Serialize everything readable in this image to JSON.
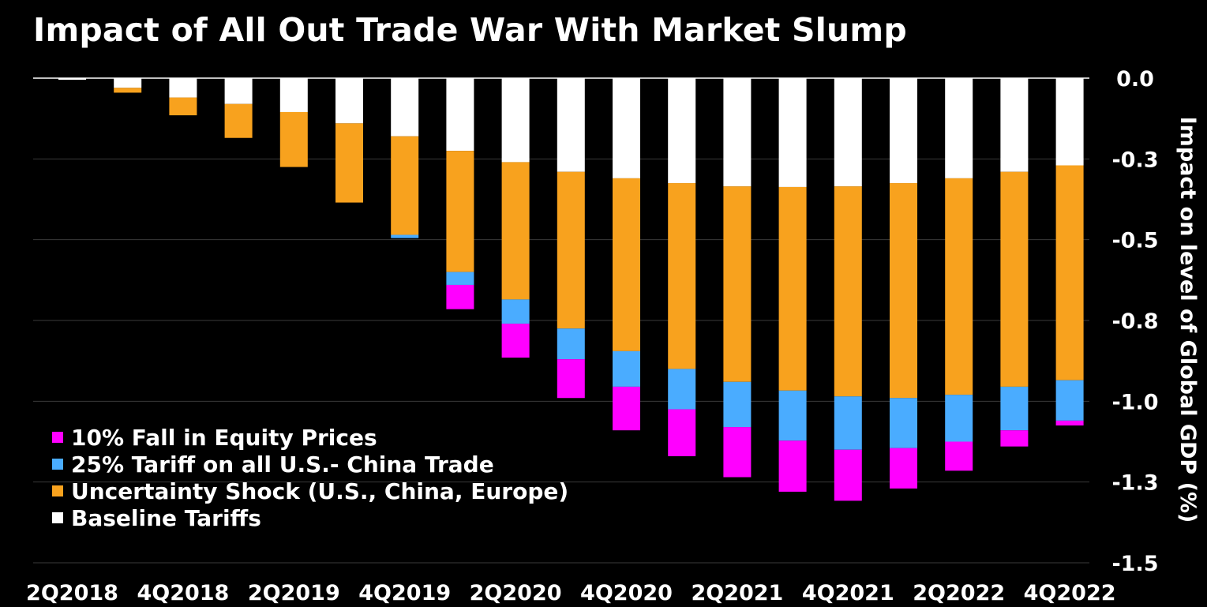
{
  "chart_data": {
    "type": "bar",
    "stacked": true,
    "title": "Impact of All Out Trade War With Market Slump",
    "ylabel": "Impact on level of Global GDP (%)",
    "ylim": [
      -1.5,
      0
    ],
    "ytick_values": [
      0,
      -0.25,
      -0.5,
      -0.75,
      -1.0,
      -1.25,
      -1.5
    ],
    "ytick_labels": [
      "0.0",
      "-0.3",
      "-0.5",
      "-0.8",
      "-1.0",
      "-1.3",
      "-1.5"
    ],
    "categories": [
      "2Q2018",
      "3Q2018",
      "4Q2018",
      "1Q2019",
      "2Q2019",
      "3Q2019",
      "4Q2019",
      "1Q2020",
      "2Q2020",
      "3Q2020",
      "4Q2020",
      "1Q2021",
      "2Q2021",
      "3Q2021",
      "4Q2021",
      "1Q2022",
      "2Q2022",
      "3Q2022",
      "4Q2022"
    ],
    "xtick_labels": [
      "2Q2018",
      "",
      "4Q2018",
      "",
      "2Q2019",
      "",
      "4Q2019",
      "",
      "2Q2020",
      "",
      "4Q2020",
      "",
      "2Q2021",
      "",
      "4Q2021",
      "",
      "2Q2022",
      "",
      "4Q2022"
    ],
    "series": [
      {
        "name": "Baseline Tariffs",
        "color": "#ffffff",
        "values": [
          -0.005,
          -0.03,
          -0.06,
          -0.08,
          -0.105,
          -0.14,
          -0.18,
          -0.225,
          -0.26,
          -0.29,
          -0.31,
          -0.325,
          -0.335,
          -0.337,
          -0.335,
          -0.325,
          -0.31,
          -0.29,
          -0.27
        ]
      },
      {
        "name": "Uncertainty Shock (U.S., China, Europe)",
        "color": "#f8a21e",
        "values": [
          0,
          -0.015,
          -0.055,
          -0.105,
          -0.17,
          -0.245,
          -0.305,
          -0.375,
          -0.425,
          -0.485,
          -0.535,
          -0.575,
          -0.605,
          -0.63,
          -0.65,
          -0.665,
          -0.67,
          -0.665,
          -0.665
        ]
      },
      {
        "name": "25% Tariff on all U.S.- China Trade",
        "color": "#4aacff",
        "values": [
          0,
          0,
          0,
          0,
          0,
          0,
          -0.01,
          -0.04,
          -0.075,
          -0.095,
          -0.11,
          -0.125,
          -0.14,
          -0.155,
          -0.165,
          -0.155,
          -0.145,
          -0.135,
          -0.125
        ]
      },
      {
        "name": "10% Fall in Equity Prices",
        "color": "#ff00ff",
        "values": [
          0,
          0,
          0,
          0,
          0,
          0,
          0,
          -0.075,
          -0.105,
          -0.12,
          -0.135,
          -0.145,
          -0.155,
          -0.158,
          -0.158,
          -0.125,
          -0.09,
          -0.05,
          -0.015
        ]
      }
    ],
    "legend": {
      "position": "bottom-left",
      "order": [
        "10% Fall in Equity Prices",
        "25% Tariff on all U.S.- China Trade",
        "Uncertainty Shock (U.S., China, Europe)",
        "Baseline Tariffs"
      ]
    },
    "colors": {
      "background": "#000000",
      "grid": "#3a3a3a",
      "axis": "#ffffff"
    }
  }
}
